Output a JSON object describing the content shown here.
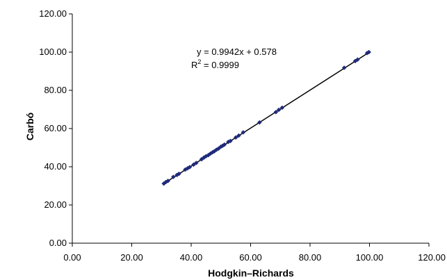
{
  "chart_data": {
    "type": "scatter",
    "xlabel": "Hodgkin–Richards",
    "ylabel": "Carbó",
    "xlim": [
      0,
      120
    ],
    "ylim": [
      0,
      120
    ],
    "x_ticks": [
      "0.00",
      "20.00",
      "40.00",
      "60.00",
      "80.00",
      "100.00",
      "120.00"
    ],
    "y_ticks": [
      "0.00",
      "20.00",
      "40.00",
      "60.00",
      "80.00",
      "100.00",
      "120.00"
    ],
    "grid": false,
    "trendline": {
      "slope": 0.9942,
      "intercept": 0.578,
      "equation": "y = 0.9942x + 0.578",
      "r2_label": "R",
      "r2_exp": "2",
      "r2_value": " = 0.9999"
    },
    "colors": {
      "marker": "#1f2a7a",
      "line": "#000000"
    },
    "points": [
      [
        30.8,
        31.2
      ],
      [
        31.5,
        32.0
      ],
      [
        32.2,
        32.6
      ],
      [
        34.0,
        34.7
      ],
      [
        35.2,
        35.7
      ],
      [
        35.9,
        36.3
      ],
      [
        38.0,
        38.5
      ],
      [
        38.8,
        39.2
      ],
      [
        39.5,
        39.8
      ],
      [
        40.8,
        41.1
      ],
      [
        41.7,
        42.0
      ],
      [
        43.5,
        43.9
      ],
      [
        44.3,
        44.8
      ],
      [
        45.0,
        45.5
      ],
      [
        45.8,
        46.1
      ],
      [
        46.5,
        46.9
      ],
      [
        47.2,
        47.6
      ],
      [
        47.8,
        48.1
      ],
      [
        48.5,
        48.9
      ],
      [
        49.2,
        49.5
      ],
      [
        50.0,
        50.5
      ],
      [
        50.6,
        51.0
      ],
      [
        51.2,
        51.6
      ],
      [
        52.5,
        53.0
      ],
      [
        53.2,
        53.5
      ],
      [
        55.0,
        55.3
      ],
      [
        56.0,
        56.3
      ],
      [
        57.5,
        58.0
      ],
      [
        63.0,
        63.2
      ],
      [
        68.5,
        68.6
      ],
      [
        69.5,
        69.8
      ],
      [
        70.6,
        70.9
      ],
      [
        91.5,
        91.8
      ],
      [
        95.2,
        95.3
      ],
      [
        96.0,
        96.1
      ],
      [
        99.2,
        99.5
      ],
      [
        99.8,
        100.0
      ]
    ]
  }
}
